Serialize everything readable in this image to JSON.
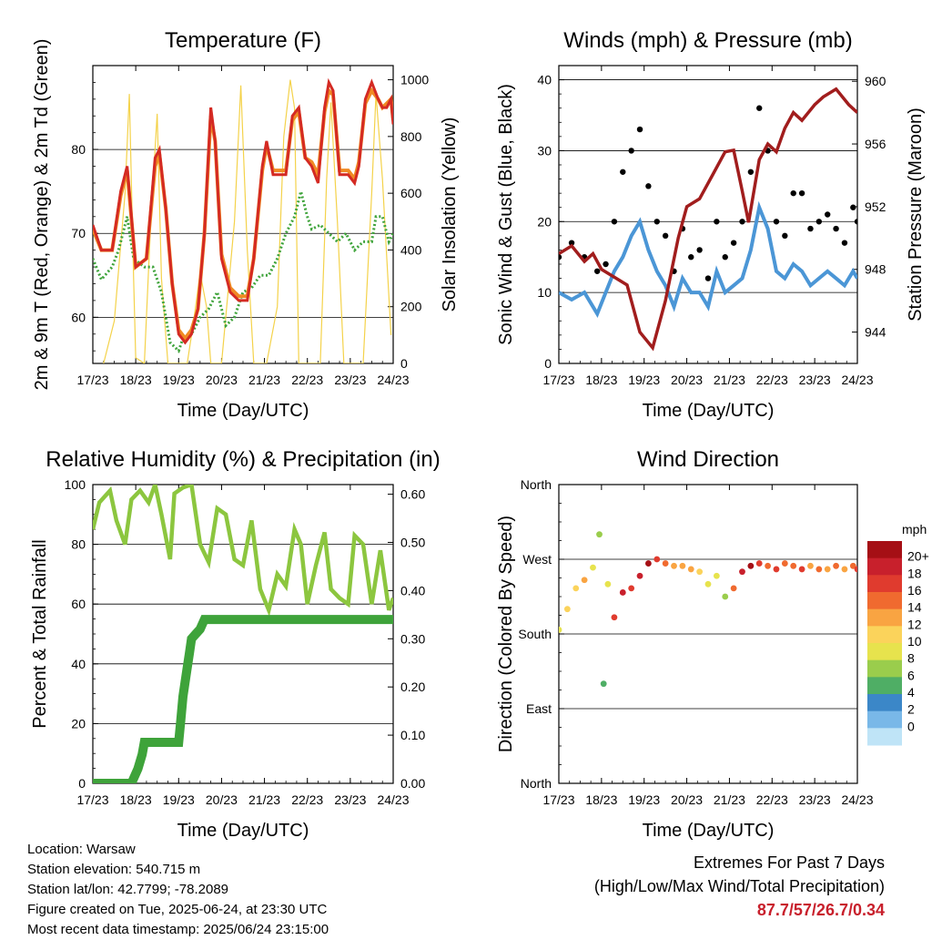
{
  "footer": {
    "location": "Location: Warsaw",
    "elevation": "Station elevation: 540.715 m",
    "latlon": "Station lat/lon: 42.7799; -78.2089",
    "created": "Figure created on Tue, 2025-06-24, at 23:30 UTC",
    "timestamp": "Most recent data timestamp: 2025/06/24 23:15:00"
  },
  "extremes": {
    "title": "Extremes For Past 7 Days",
    "subtitle": "(High/Low/Max Wind/Total Precipitation)",
    "values": "87.7/57/26.7/0.34",
    "color": "#c8202c"
  },
  "chart_data": [
    {
      "type": "line",
      "title": "Temperature (F)",
      "xlabel": "Time (Day/UTC)",
      "ylabel": "2m & 9m T (Red, Orange) & 2m Td (Green)",
      "ylabel_right": "Solar Insolation (Yellow)",
      "x_ticks": [
        "17/23",
        "18/23",
        "19/23",
        "20/23",
        "21/23",
        "22/23",
        "23/23",
        "24/23"
      ],
      "xlim": [
        0,
        7
      ],
      "ylim": [
        54.5,
        90
      ],
      "y_ticks": [
        60,
        70,
        80
      ],
      "ylim_right": [
        0,
        1050
      ],
      "y_ticks_right": [
        0,
        200,
        400,
        600,
        800,
        1000
      ],
      "grid": "horizontal",
      "colors": {
        "t2m": "#d42a23",
        "t9m": "#f08a24",
        "td": "#3ea33a",
        "solar": "#f4d24a"
      },
      "series": [
        {
          "name": "2m T",
          "axis": "left",
          "x": [
            0,
            0.2,
            0.45,
            0.65,
            0.8,
            1.0,
            1.25,
            1.45,
            1.55,
            1.7,
            1.85,
            2.0,
            2.15,
            2.3,
            2.45,
            2.6,
            2.75,
            2.85,
            3.0,
            3.2,
            3.4,
            3.6,
            3.75,
            3.95,
            4.05,
            4.2,
            4.4,
            4.5,
            4.65,
            4.8,
            4.95,
            5.1,
            5.25,
            5.4,
            5.5,
            5.6,
            5.75,
            5.95,
            6.1,
            6.2,
            6.35,
            6.5,
            6.65,
            6.75,
            6.85,
            6.95,
            7.0
          ],
          "values": [
            71,
            68,
            68,
            75,
            78,
            66,
            67,
            79,
            80,
            73,
            64,
            58,
            57,
            58,
            61,
            70,
            85,
            81,
            67,
            63,
            62,
            62,
            67,
            78,
            81,
            77,
            77,
            77,
            84,
            85,
            79,
            78,
            76,
            85,
            88,
            87,
            77,
            77,
            76,
            78,
            86,
            88,
            86,
            85,
            85,
            86,
            83
          ]
        },
        {
          "name": "9m T",
          "axis": "left",
          "x": [
            0,
            0.2,
            0.45,
            0.65,
            0.8,
            1.0,
            1.25,
            1.45,
            1.55,
            1.7,
            1.85,
            2.0,
            2.15,
            2.3,
            2.45,
            2.6,
            2.75,
            2.85,
            3.0,
            3.2,
            3.4,
            3.6,
            3.75,
            3.95,
            4.05,
            4.2,
            4.4,
            4.5,
            4.65,
            4.8,
            4.95,
            5.1,
            5.25,
            5.4,
            5.5,
            5.6,
            5.75,
            5.95,
            6.1,
            6.2,
            6.35,
            6.5,
            6.65,
            6.75,
            6.85,
            6.95,
            7.0
          ],
          "values": [
            70.5,
            68,
            68,
            74.5,
            77.5,
            66,
            67,
            78,
            79.5,
            73,
            64,
            58.5,
            57.5,
            58.5,
            61,
            70,
            84,
            81,
            67.5,
            63.5,
            62.5,
            62.5,
            67,
            77.5,
            80.5,
            77.5,
            77.5,
            77.5,
            83.5,
            84.5,
            79,
            78.5,
            77,
            84.5,
            87,
            86.5,
            77.5,
            77.5,
            76.5,
            78.5,
            85.5,
            87,
            86,
            85,
            85.5,
            86,
            83.5
          ]
        },
        {
          "name": "2m Td",
          "axis": "left",
          "x": [
            0,
            0.2,
            0.45,
            0.6,
            0.8,
            0.95,
            1.2,
            1.4,
            1.6,
            1.8,
            2.0,
            2.1,
            2.3,
            2.5,
            2.7,
            2.9,
            3.1,
            3.3,
            3.5,
            3.7,
            3.9,
            4.1,
            4.3,
            4.5,
            4.7,
            4.85,
            5.0,
            5.1,
            5.3,
            5.5,
            5.7,
            5.9,
            6.1,
            6.3,
            6.5,
            6.6,
            6.75,
            6.9,
            7.0
          ],
          "values": [
            67,
            64.5,
            66,
            68,
            72,
            67,
            66,
            66,
            63,
            57,
            56,
            57.5,
            58,
            60,
            61,
            63,
            59,
            60,
            63,
            63.5,
            65,
            65,
            67,
            70,
            72,
            75,
            72,
            70.5,
            71,
            70,
            69,
            70,
            68,
            69,
            69,
            72,
            72,
            69,
            70
          ]
        },
        {
          "name": "Solar Insolation",
          "axis": "right",
          "x": [
            0.25,
            0.5,
            0.75,
            0.85,
            0.95,
            1.0,
            1.2,
            1.35,
            1.5,
            1.6,
            1.75,
            1.9,
            2.2,
            2.35,
            2.5,
            2.65,
            2.75,
            3.0,
            3.3,
            3.45,
            3.6,
            3.75,
            3.85,
            4.05,
            4.3,
            4.45,
            4.6,
            4.7,
            4.8,
            5.05,
            5.3,
            5.45,
            5.55,
            5.7,
            5.85,
            6.05,
            6.3,
            6.5,
            6.6,
            6.75,
            6.95
          ],
          "values": [
            0,
            150,
            600,
            950,
            300,
            20,
            0,
            500,
            880,
            300,
            0,
            0,
            0,
            150,
            320,
            200,
            0,
            0,
            500,
            980,
            400,
            0,
            0,
            0,
            200,
            800,
            1000,
            900,
            0,
            0,
            0,
            650,
            920,
            500,
            0,
            0,
            0,
            600,
            950,
            650,
            100
          ]
        }
      ]
    },
    {
      "type": "line",
      "title": "Winds (mph) & Pressure (mb)",
      "xlabel": "Time (Day/UTC)",
      "ylabel": "Sonic Wind & Gust (Blue, Black)",
      "ylabel_right": "Station Pressure (Maroon)",
      "x_ticks": [
        "17/23",
        "18/23",
        "19/23",
        "20/23",
        "21/23",
        "22/23",
        "23/23",
        "24/23"
      ],
      "xlim": [
        0,
        7
      ],
      "ylim": [
        0,
        42
      ],
      "y_ticks": [
        0,
        10,
        20,
        30,
        40
      ],
      "ylim_right": [
        942,
        961
      ],
      "y_ticks_right": [
        944,
        948,
        952,
        956,
        960
      ],
      "grid": "horizontal",
      "colors": {
        "wind": "#4b96d6",
        "gust": "#000000",
        "pressure": "#a11d1d"
      },
      "series": [
        {
          "name": "Sonic Wind",
          "axis": "left",
          "x": [
            0,
            0.3,
            0.6,
            0.9,
            1.1,
            1.3,
            1.5,
            1.7,
            1.9,
            2.1,
            2.3,
            2.5,
            2.7,
            2.9,
            3.1,
            3.3,
            3.5,
            3.7,
            3.9,
            4.1,
            4.3,
            4.5,
            4.7,
            4.9,
            5.1,
            5.3,
            5.5,
            5.7,
            5.9,
            6.1,
            6.3,
            6.5,
            6.7,
            6.9,
            7.0
          ],
          "values": [
            10,
            9,
            10,
            7,
            10,
            13,
            15,
            18,
            20,
            16,
            13,
            11,
            8,
            12,
            10,
            10,
            8,
            13,
            10,
            11,
            12,
            16,
            22,
            19,
            13,
            12,
            14,
            13,
            11,
            12,
            13,
            12,
            11,
            13,
            12
          ]
        },
        {
          "name": "Gust",
          "axis": "left",
          "x": [
            0,
            0.3,
            0.6,
            0.9,
            1.1,
            1.3,
            1.5,
            1.7,
            1.9,
            2.1,
            2.3,
            2.5,
            2.7,
            2.9,
            3.1,
            3.3,
            3.5,
            3.7,
            3.9,
            4.1,
            4.3,
            4.5,
            4.7,
            4.9,
            5.1,
            5.3,
            5.5,
            5.7,
            5.9,
            6.1,
            6.3,
            6.5,
            6.7,
            6.9,
            7.0
          ],
          "values": [
            15,
            17,
            15,
            13,
            14,
            20,
            27,
            30,
            33,
            25,
            20,
            18,
            13,
            19,
            15,
            16,
            12,
            20,
            15,
            17,
            20,
            27,
            36,
            30,
            20,
            18,
            24,
            24,
            19,
            20,
            21,
            19,
            17,
            22,
            20
          ]
        },
        {
          "name": "Station Pressure",
          "axis": "right",
          "x": [
            0,
            0.3,
            0.6,
            0.8,
            1.0,
            1.3,
            1.6,
            1.9,
            2.2,
            2.5,
            2.8,
            3.0,
            3.3,
            3.6,
            3.9,
            4.1,
            4.3,
            4.45,
            4.7,
            4.9,
            5.1,
            5.3,
            5.5,
            5.7,
            6.0,
            6.2,
            6.5,
            6.8,
            7.0
          ],
          "values": [
            949,
            949.5,
            948.5,
            949,
            948,
            947.5,
            947,
            944,
            943,
            946,
            950,
            952,
            952.5,
            954,
            955.5,
            955.6,
            953,
            951,
            955,
            956,
            955.5,
            957,
            958,
            957.5,
            958.5,
            959,
            959.5,
            958.5,
            958
          ]
        }
      ]
    },
    {
      "type": "line",
      "title": "Relative Humidity (%) & Precipitation (in)",
      "xlabel": "Time (Day/UTC)",
      "ylabel": "Percent & Total Rainfall",
      "x_ticks": [
        "17/23",
        "18/23",
        "19/23",
        "20/23",
        "21/23",
        "22/23",
        "23/23",
        "24/23"
      ],
      "xlim": [
        0,
        7
      ],
      "ylim": [
        0,
        100
      ],
      "y_ticks": [
        0,
        20,
        40,
        60,
        80,
        100
      ],
      "ylim_right": [
        0,
        0.62
      ],
      "y_ticks_right": [
        "0.00",
        "0.10",
        "0.20",
        "0.30",
        "0.40",
        "0.50",
        "0.60"
      ],
      "grid": "horizontal",
      "colors": {
        "rh": "#8cc63f",
        "precip": "#3ea33a"
      },
      "series": [
        {
          "name": "Relative Humidity",
          "axis": "left",
          "x": [
            0,
            0.15,
            0.4,
            0.55,
            0.75,
            0.9,
            1.1,
            1.3,
            1.45,
            1.6,
            1.8,
            1.9,
            2.1,
            2.3,
            2.5,
            2.7,
            2.9,
            3.1,
            3.3,
            3.5,
            3.7,
            3.9,
            4.1,
            4.3,
            4.5,
            4.7,
            4.85,
            5.0,
            5.2,
            5.4,
            5.55,
            5.75,
            5.95,
            6.1,
            6.3,
            6.5,
            6.7,
            6.9,
            7.0
          ],
          "values": [
            85,
            94,
            98,
            88,
            80,
            95,
            98,
            94,
            100,
            90,
            75,
            97,
            99,
            100,
            80,
            74,
            92,
            90,
            75,
            73,
            88,
            65,
            58,
            70,
            66,
            85,
            80,
            60,
            73,
            84,
            65,
            62,
            60,
            83,
            80,
            60,
            78,
            58,
            62
          ]
        },
        {
          "name": "Total Rainfall",
          "axis": "right",
          "x": [
            0,
            0.9,
            1.05,
            1.15,
            1.2,
            2.0,
            2.05,
            2.1,
            2.2,
            2.25,
            2.3,
            2.4,
            2.5,
            2.6,
            3.0,
            4.0,
            5.0,
            6.0,
            7.0
          ],
          "values": [
            0.0,
            0.0,
            0.03,
            0.06,
            0.085,
            0.085,
            0.13,
            0.18,
            0.24,
            0.27,
            0.3,
            0.31,
            0.32,
            0.34,
            0.34,
            0.34,
            0.34,
            0.34,
            0.34
          ]
        }
      ]
    },
    {
      "type": "scatter",
      "title": "Wind Direction",
      "xlabel": "Time (Day/UTC)",
      "ylabel": "Direction (Colored By Speed)",
      "x_ticks": [
        "17/23",
        "18/23",
        "19/23",
        "20/23",
        "21/23",
        "22/23",
        "23/23",
        "24/23"
      ],
      "xlim": [
        0,
        7
      ],
      "ylim": [
        0,
        360
      ],
      "y_ticks": [
        "North",
        "East",
        "South",
        "West",
        "North"
      ],
      "grid": "horizontal",
      "colorbar": {
        "title": "mph",
        "labels": [
          "20+",
          "18",
          "16",
          "14",
          "12",
          "10",
          "8",
          "6",
          "4",
          "2",
          "0"
        ],
        "colors": [
          "#a50f15",
          "#c8202c",
          "#e03b2e",
          "#f06a2f",
          "#f9a442",
          "#fbd35b",
          "#e7e34d",
          "#9acd4c",
          "#4fae65",
          "#3b87c8",
          "#79b8e8",
          "#bfe4f7"
        ]
      },
      "series": [
        {
          "name": "Wind Direction",
          "x": [
            0,
            0.2,
            0.4,
            0.6,
            0.8,
            0.95,
            1.05,
            1.15,
            1.3,
            1.5,
            1.7,
            1.9,
            2.1,
            2.3,
            2.5,
            2.7,
            2.9,
            3.1,
            3.3,
            3.5,
            3.7,
            3.9,
            4.1,
            4.3,
            4.5,
            4.7,
            4.9,
            5.1,
            5.3,
            5.5,
            5.7,
            5.9,
            6.1,
            6.3,
            6.5,
            6.7,
            6.9,
            7.0
          ],
          "values": [
            185,
            210,
            235,
            245,
            260,
            300,
            120,
            240,
            200,
            230,
            235,
            250,
            265,
            270,
            265,
            262,
            262,
            258,
            255,
            240,
            250,
            225,
            235,
            255,
            262,
            265,
            262,
            258,
            265,
            262,
            258,
            262,
            258,
            258,
            262,
            258,
            262,
            258
          ],
          "speeds": [
            8,
            10,
            11,
            12,
            9,
            7,
            5,
            8,
            17,
            19,
            16,
            18,
            20,
            16,
            14,
            12,
            13,
            12,
            11,
            9,
            8,
            7,
            14,
            19,
            20,
            17,
            14,
            16,
            15,
            14,
            16,
            13,
            15,
            12,
            14,
            13,
            15,
            16
          ]
        }
      ]
    }
  ]
}
